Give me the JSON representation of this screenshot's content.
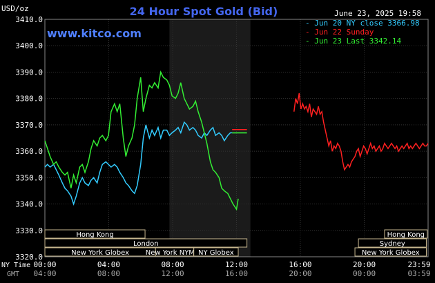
{
  "chart_data": {
    "type": "line",
    "title": "24 Hour Spot Gold (Bid)",
    "ylabel": "USD/oz",
    "website": "www.kitco.com",
    "timestamp": "June 23, 2025 19:58",
    "ylim": [
      3320,
      3410
    ],
    "yticks": [
      "3410.0",
      "3400.0",
      "3390.0",
      "3380.0",
      "3370.0",
      "3360.0",
      "3350.0",
      "3340.0",
      "3330.0",
      "3320.0"
    ],
    "x_hours": [
      0,
      24
    ],
    "ny_time_label": "NY Time",
    "gmt_label": "GMT",
    "ny_ticks": [
      "00:00",
      "04:00",
      "08:00",
      "12:00",
      "16:00",
      "20:00",
      "23:59"
    ],
    "gmt_ticks": [
      "04:00",
      "08:00",
      "12:00",
      "16:00",
      "20:00",
      "00:00",
      "03:59"
    ],
    "legend": [
      {
        "text": "Jun 20 NY close 3366.98",
        "color": "#33ccff"
      },
      {
        "text": "Jun 22 Sunday",
        "color": "#ff2020"
      },
      {
        "text": "Jun 23 Last 3342.14",
        "color": "#33ee33"
      }
    ],
    "markets": [
      {
        "name": "Hong Kong",
        "row": 0,
        "start": 0,
        "end": 11.5
      },
      {
        "name": "London",
        "row": 1,
        "start": 0,
        "end": 23.2
      },
      {
        "name": "New York Globex",
        "row": 2,
        "start": 0,
        "end": 12.7
      },
      {
        "name": "New York NYMEX",
        "row": 2,
        "start": 12.7,
        "end": 17.1
      },
      {
        "name": "NY Globex",
        "row": 2,
        "start": 17.1,
        "end": 22.2
      },
      {
        "name": "Hong Kong",
        "row": 0,
        "start": 39.0,
        "end": 43.9
      },
      {
        "name": "Sydney",
        "row": 1,
        "start": 36.0,
        "end": 43.8
      },
      {
        "name": "New York Globex",
        "row": 2,
        "start": 35.6,
        "end": 43.8
      }
    ],
    "series": [
      {
        "name": "Jun 20",
        "color": "#33ccff",
        "x": [
          0,
          0.3,
          0.6,
          1,
          1.3,
          1.6,
          2,
          2.3,
          2.6,
          3,
          3.3,
          3.6,
          4,
          4.3,
          4.6,
          5,
          5.3,
          5.6,
          6,
          6.3,
          6.6,
          7,
          7.3,
          7.6,
          8,
          8.3,
          8.6,
          9,
          9.3,
          9.6,
          10,
          10.3,
          10.6,
          11,
          11.3,
          11.6,
          12,
          12.3,
          12.6,
          13,
          13.3,
          13.6,
          14,
          14.3,
          14.6,
          15,
          15.3,
          15.6,
          16,
          16.3,
          16.6,
          17,
          17.3,
          17.6,
          18,
          18.3,
          18.6,
          19,
          19.3,
          19.6,
          20,
          20.3,
          20.6,
          21,
          21.3,
          21.6,
          22
        ],
        "y": [
          3354,
          3355,
          3354,
          3355,
          3353,
          3351,
          3348,
          3346,
          3345,
          3343,
          3340,
          3343,
          3348,
          3350,
          3348,
          3347,
          3349,
          3350,
          3348,
          3352,
          3355,
          3356,
          3355,
          3354,
          3355,
          3354,
          3352,
          3350,
          3348,
          3347,
          3345,
          3344,
          3347,
          3355,
          3365,
          3370,
          3365,
          3368,
          3366,
          3369,
          3365,
          3368,
          3368,
          3366,
          3367,
          3368,
          3369,
          3367,
          3371,
          3370,
          3368,
          3369,
          3368,
          3366,
          3365,
          3367,
          3366,
          3368,
          3369,
          3366,
          3367,
          3366,
          3364,
          3366,
          3367,
          3367,
          3367
        ]
      },
      {
        "name": "Jun 23",
        "color": "#33ee33",
        "x": [
          0,
          0.3,
          0.6,
          1,
          1.3,
          1.6,
          2,
          2.3,
          2.6,
          3,
          3.3,
          3.6,
          4,
          4.3,
          4.6,
          5,
          5.3,
          5.6,
          6,
          6.3,
          6.6,
          7,
          7.3,
          7.6,
          8,
          8.3,
          8.6,
          9,
          9.3,
          9.6,
          10,
          10.3,
          10.6,
          11,
          11.3,
          11.6,
          12,
          12.3,
          12.6,
          13,
          13.3,
          13.6,
          14,
          14.3,
          14.6,
          15,
          15.3,
          15.6,
          16,
          16.3,
          16.6,
          17,
          17.3,
          17.6,
          18,
          18.3,
          18.6,
          19,
          19.3,
          19.6,
          20,
          20.3,
          20.6,
          21,
          21.3,
          21.6,
          22,
          22.2
        ],
        "y": [
          3364,
          3361,
          3358,
          3355,
          3356,
          3354,
          3352,
          3351,
          3352,
          3346,
          3351,
          3348,
          3354,
          3355,
          3352,
          3356,
          3361,
          3364,
          3362,
          3365,
          3366,
          3364,
          3366,
          3375,
          3378,
          3375,
          3378,
          3365,
          3358,
          3362,
          3365,
          3370,
          3380,
          3388,
          3375,
          3380,
          3385,
          3384,
          3386,
          3384,
          3390,
          3388,
          3387,
          3385,
          3381,
          3380,
          3382,
          3386,
          3380,
          3378,
          3376,
          3377,
          3379,
          3375,
          3371,
          3367,
          3363,
          3356,
          3353,
          3352,
          3350,
          3346,
          3345,
          3344,
          3342,
          3340,
          3338,
          3342
        ]
      },
      {
        "name": "Jun 22",
        "color": "#ff2020",
        "x": [
          28.6,
          28.8,
          29,
          29.2,
          29.4,
          29.6,
          29.8,
          30,
          30.2,
          30.4,
          30.6,
          30.8,
          31,
          31.2,
          31.4,
          31.6,
          31.8,
          32,
          32.2,
          32.4,
          32.6,
          32.8,
          33,
          33.2,
          33.4,
          33.6,
          33.8,
          34,
          34.2,
          34.4,
          34.6,
          34.8,
          35,
          35.2,
          35.4,
          35.6,
          35.8,
          36,
          36.2,
          36.4,
          36.6,
          36.8,
          37,
          37.2,
          37.4,
          37.6,
          37.8,
          38,
          38.2,
          38.4,
          38.6,
          38.8,
          39,
          39.2,
          39.4,
          39.6,
          39.8,
          40,
          40.2,
          40.4,
          40.6,
          40.8,
          41,
          41.2,
          41.4,
          41.6,
          41.8,
          42,
          42.2,
          42.4,
          42.6,
          42.8,
          43,
          43.2,
          43.4,
          43.6,
          43.8,
          44
        ],
        "y": [
          3375,
          3380,
          3378,
          3382,
          3376,
          3378,
          3376,
          3377,
          3375,
          3378,
          3373,
          3376,
          3375,
          3374,
          3377,
          3374,
          3375,
          3371,
          3368,
          3365,
          3362,
          3364,
          3360,
          3362,
          3361,
          3363,
          3362,
          3360,
          3356,
          3353,
          3354,
          3355,
          3354,
          3356,
          3357,
          3358,
          3360,
          3361,
          3358,
          3360,
          3362,
          3361,
          3359,
          3361,
          3363,
          3361,
          3362,
          3360,
          3361,
          3362,
          3360,
          3361,
          3363,
          3362,
          3361,
          3362,
          3363,
          3362,
          3361,
          3362,
          3360,
          3361,
          3362,
          3361,
          3362,
          3363,
          3361,
          3362,
          3361,
          3362,
          3363,
          3362,
          3361,
          3362,
          3363,
          3362,
          3362,
          3363
        ]
      }
    ]
  }
}
